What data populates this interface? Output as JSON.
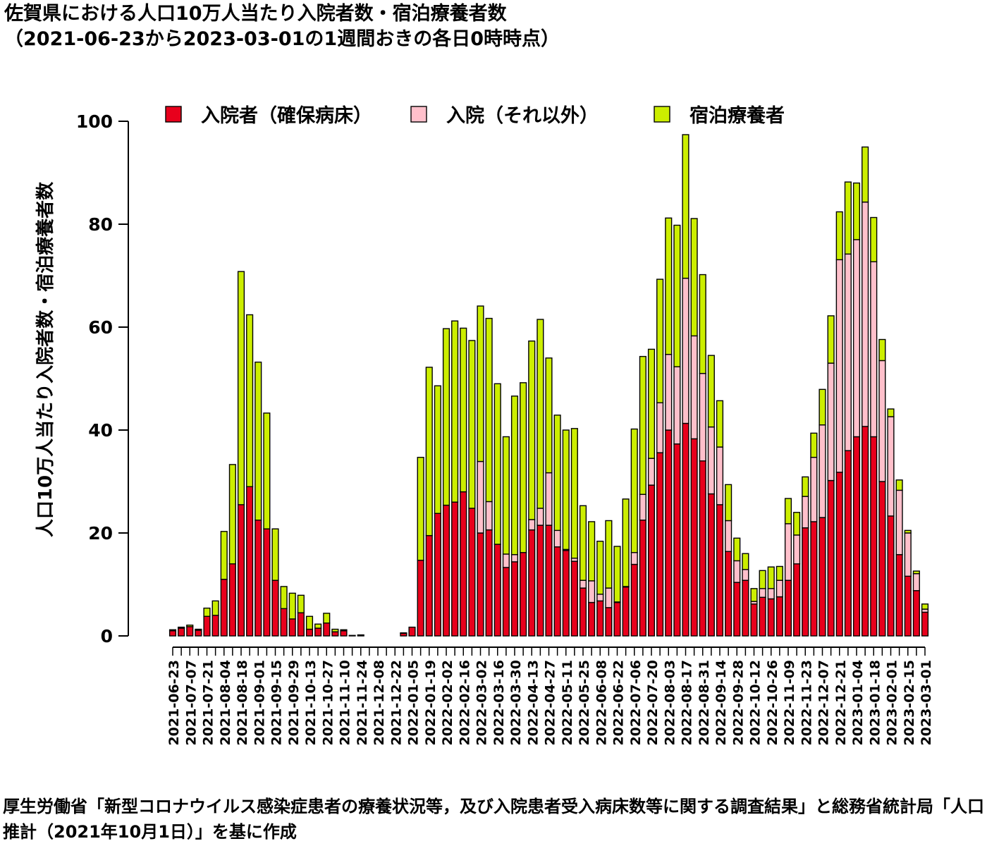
{
  "title": "佐賀県における人口10万人当たり入院者数・宿泊療養者数",
  "subtitle": "（2021-06-23から2023-03-01の1週間おきの各日0時時点）",
  "footnote": "厚生労働省「新型コロナウイルス感染症患者の療養状況等，及び入院患者受入病床数等に関する調査結果」と総務省統計局「人口推計（2021年10月1日）」を基に作成",
  "chart_data": {
    "type": "bar",
    "stacked": true,
    "ylabel": "人口10万人当たり入院者数・宿泊療養者数",
    "ylim": [
      0,
      100
    ],
    "yticks": [
      0,
      20,
      40,
      60,
      80,
      100
    ],
    "legend_position": "top",
    "categories": [
      "2021-06-23",
      "2021-06-30",
      "2021-07-07",
      "2021-07-14",
      "2021-07-21",
      "2021-07-28",
      "2021-08-04",
      "2021-08-11",
      "2021-08-18",
      "2021-08-25",
      "2021-09-01",
      "2021-09-08",
      "2021-09-15",
      "2021-09-22",
      "2021-09-29",
      "2021-10-06",
      "2021-10-13",
      "2021-10-20",
      "2021-10-27",
      "2021-11-03",
      "2021-11-10",
      "2021-11-17",
      "2021-11-24",
      "2021-12-01",
      "2021-12-08",
      "2021-12-15",
      "2021-12-22",
      "2021-12-29",
      "2022-01-05",
      "2022-01-12",
      "2022-01-19",
      "2022-01-26",
      "2022-02-02",
      "2022-02-09",
      "2022-02-16",
      "2022-02-23",
      "2022-03-02",
      "2022-03-09",
      "2022-03-16",
      "2022-03-23",
      "2022-03-30",
      "2022-04-06",
      "2022-04-13",
      "2022-04-20",
      "2022-04-27",
      "2022-05-04",
      "2022-05-11",
      "2022-05-18",
      "2022-05-25",
      "2022-06-01",
      "2022-06-08",
      "2022-06-15",
      "2022-06-22",
      "2022-06-29",
      "2022-07-06",
      "2022-07-13",
      "2022-07-20",
      "2022-07-27",
      "2022-08-03",
      "2022-08-10",
      "2022-08-17",
      "2022-08-24",
      "2022-08-31",
      "2022-09-07",
      "2022-09-14",
      "2022-09-21",
      "2022-09-28",
      "2022-10-05",
      "2022-10-12",
      "2022-10-19",
      "2022-10-26",
      "2022-11-02",
      "2022-11-09",
      "2022-11-16",
      "2022-11-23",
      "2022-11-30",
      "2022-12-07",
      "2022-12-14",
      "2022-12-21",
      "2022-12-28",
      "2023-01-04",
      "2023-01-11",
      "2023-01-18",
      "2023-01-25",
      "2023-02-01",
      "2023-02-08",
      "2023-02-15",
      "2023-02-22",
      "2023-03-01"
    ],
    "tick_labels": [
      "2021-06-23",
      "2021-07-07",
      "2021-07-21",
      "2021-08-04",
      "2021-08-18",
      "2021-09-01",
      "2021-09-15",
      "2021-09-29",
      "2021-10-13",
      "2021-10-27",
      "2021-11-10",
      "2021-11-24",
      "2021-12-08",
      "2021-12-22",
      "2022-01-05",
      "2022-01-19",
      "2022-02-02",
      "2022-02-16",
      "2022-03-02",
      "2022-03-16",
      "2022-03-30",
      "2022-04-13",
      "2022-04-27",
      "2022-05-11",
      "2022-05-25",
      "2022-06-08",
      "2022-06-22",
      "2022-07-06",
      "2022-07-20",
      "2022-08-03",
      "2022-08-17",
      "2022-08-31",
      "2022-09-14",
      "2022-09-28",
      "2022-10-12",
      "2022-10-26",
      "2022-11-09",
      "2022-11-23",
      "2022-12-07",
      "2022-12-21",
      "2023-01-04",
      "2023-01-18",
      "2023-02-01",
      "2023-02-15",
      "2023-03-01"
    ],
    "series": [
      {
        "name": "入院者（確保病床）",
        "color": "#e8001c",
        "values": [
          1.0,
          1.5,
          1.8,
          1.1,
          3.8,
          4.0,
          11.0,
          14.0,
          25.5,
          29.0,
          22.5,
          20.8,
          10.8,
          5.3,
          3.3,
          4.5,
          1.3,
          1.5,
          2.5,
          0.8,
          1.0,
          0.1,
          0.2,
          0,
          0,
          0,
          0,
          0.5,
          1.7,
          14.7,
          19.5,
          23.8,
          25.4,
          26.0,
          28.0,
          24.8,
          20.0,
          20.6,
          17.8,
          13.3,
          14.4,
          16.2,
          20.6,
          21.5,
          21.5,
          17.3,
          16.6,
          14.5,
          9.3,
          6.5,
          6.8,
          5.5,
          6.5,
          9.5,
          13.9,
          22.5,
          29.3,
          35.6,
          40.0,
          37.3,
          41.3,
          38.3,
          34.0,
          27.6,
          25.5,
          16.4,
          10.4,
          10.8,
          6.2,
          7.5,
          7.2,
          7.6,
          10.8,
          14.0,
          21.0,
          22.2,
          23.0,
          30.2,
          31.8,
          36.0,
          38.7,
          40.7,
          38.7,
          30.0,
          23.3,
          15.8,
          11.6,
          8.8,
          4.6
        ]
      },
      {
        "name": "入院（それ以外）",
        "color": "#ffc0cb",
        "values": [
          0,
          0,
          0,
          0,
          0,
          0,
          0,
          0,
          0,
          0,
          0,
          0,
          0,
          0,
          0,
          0,
          0,
          0,
          0,
          0,
          0,
          0,
          0,
          0,
          0,
          0,
          0,
          0,
          0,
          0,
          0,
          0,
          0,
          0,
          0,
          0,
          13.9,
          5.5,
          0,
          2.6,
          1.4,
          0,
          2.0,
          3.3,
          10.2,
          3.2,
          0.2,
          0.6,
          1.5,
          4.2,
          1.3,
          3.8,
          0.1,
          0.1,
          2.3,
          5.0,
          5.2,
          9.7,
          14.7,
          15.0,
          28.2,
          20.0,
          17.0,
          13.0,
          11.2,
          6.0,
          4.2,
          2.1,
          0.5,
          1.7,
          2.0,
          3.2,
          11.0,
          5.6,
          6.1,
          12.5,
          18.0,
          22.8,
          41.3,
          38.2,
          38.3,
          43.6,
          34.0,
          23.5,
          19.3,
          12.5,
          8.4,
          3.3,
          0.6
        ]
      },
      {
        "name": "宿泊療養者",
        "color": "#ccee00",
        "values": [
          0.2,
          0.2,
          0.3,
          0.2,
          1.6,
          2.8,
          9.3,
          19.3,
          45.3,
          33.4,
          30.7,
          22.5,
          10.0,
          4.3,
          5.0,
          3.4,
          2.5,
          0.8,
          1.9,
          0.5,
          0.2,
          0,
          0,
          0,
          0,
          0,
          0,
          0.1,
          0,
          20.0,
          32.7,
          24.8,
          34.3,
          35.2,
          31.8,
          32.6,
          30.2,
          35.6,
          31.2,
          22.8,
          30.8,
          33.0,
          34.7,
          36.7,
          22.3,
          22.4,
          23.2,
          25.2,
          14.5,
          11.5,
          10.3,
          13.1,
          10.8,
          17.0,
          24.0,
          26.8,
          21.2,
          24.0,
          26.5,
          27.5,
          27.9,
          22.8,
          19.2,
          13.9,
          9.0,
          7.0,
          4.4,
          3.1,
          2.5,
          3.5,
          4.2,
          2.7,
          4.9,
          4.4,
          3.8,
          4.7,
          6.9,
          9.2,
          9.3,
          14.0,
          11.0,
          10.7,
          8.6,
          4.1,
          1.5,
          2.0,
          0.5,
          0.5,
          1.0
        ]
      }
    ]
  }
}
